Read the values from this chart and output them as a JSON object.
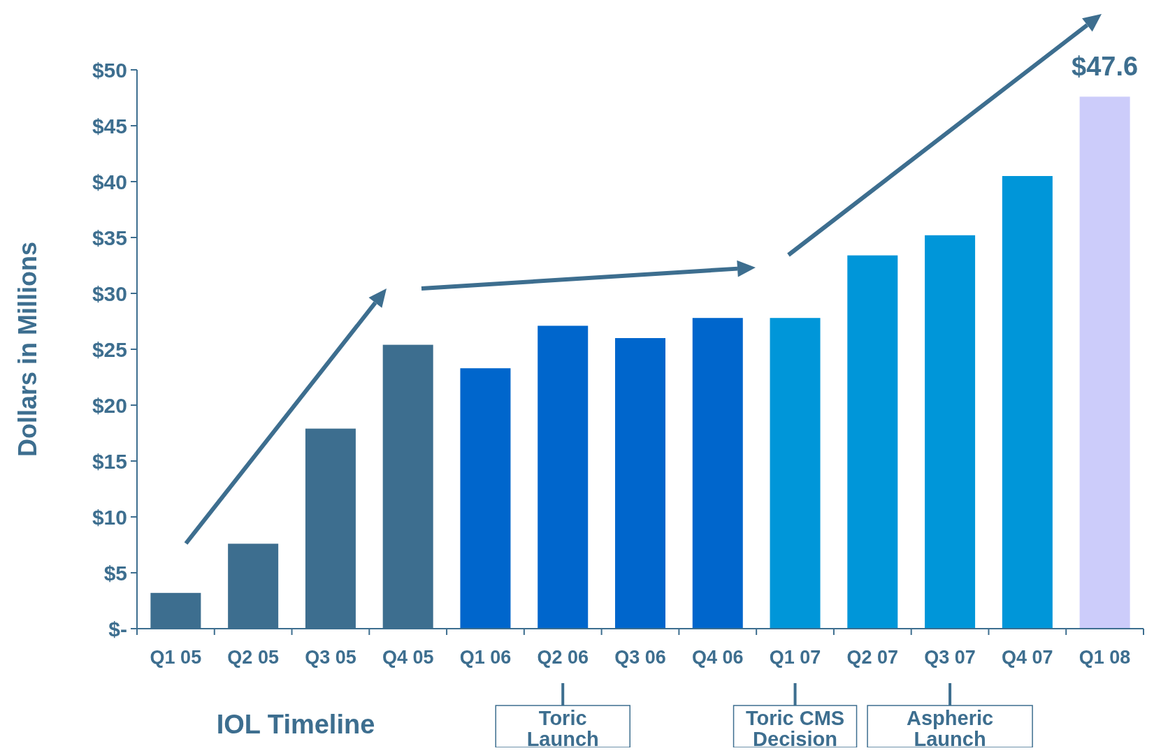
{
  "chart_data": {
    "type": "bar",
    "ylabel": "Dollars in Millions",
    "categories": [
      "Q1 05",
      "Q2 05",
      "Q3 05",
      "Q4 05",
      "Q1 06",
      "Q2 06",
      "Q3 06",
      "Q4 06",
      "Q1 07",
      "Q2 07",
      "Q3 07",
      "Q4 07",
      "Q1 08"
    ],
    "values": [
      3.2,
      7.6,
      17.9,
      25.4,
      23.3,
      27.1,
      26.0,
      27.8,
      27.8,
      33.4,
      35.2,
      40.5,
      47.6
    ],
    "colors": [
      "#3d6e8f",
      "#3d6e8f",
      "#3d6e8f",
      "#3d6e8f",
      "#0066cc",
      "#0066cc",
      "#0066cc",
      "#0066cc",
      "#0096d9",
      "#0096d9",
      "#0096d9",
      "#0096d9",
      "#ccccfa"
    ],
    "value_labels": [
      null,
      null,
      null,
      null,
      null,
      null,
      null,
      null,
      null,
      null,
      null,
      null,
      "$47.6"
    ],
    "ylim": [
      0,
      50
    ],
    "yticks": [
      {
        "value": 0,
        "label": "$-"
      },
      {
        "value": 5,
        "label": "$5"
      },
      {
        "value": 10,
        "label": "$10"
      },
      {
        "value": 15,
        "label": "$15"
      },
      {
        "value": 20,
        "label": "$20"
      },
      {
        "value": 25,
        "label": "$25"
      },
      {
        "value": 30,
        "label": "$30"
      },
      {
        "value": 35,
        "label": "$35"
      },
      {
        "value": 40,
        "label": "$40"
      },
      {
        "value": 45,
        "label": "$45"
      },
      {
        "value": 50,
        "label": "$50"
      }
    ],
    "grid": false,
    "annotations": [
      "IOL Timeline",
      {
        "text": "Toric Launch",
        "x": "Q2 06"
      },
      {
        "text": "Toric CMS Decision",
        "x": "Q1 07"
      },
      {
        "text": "Aspheric Launch",
        "x": "Q3 07"
      }
    ]
  }
}
